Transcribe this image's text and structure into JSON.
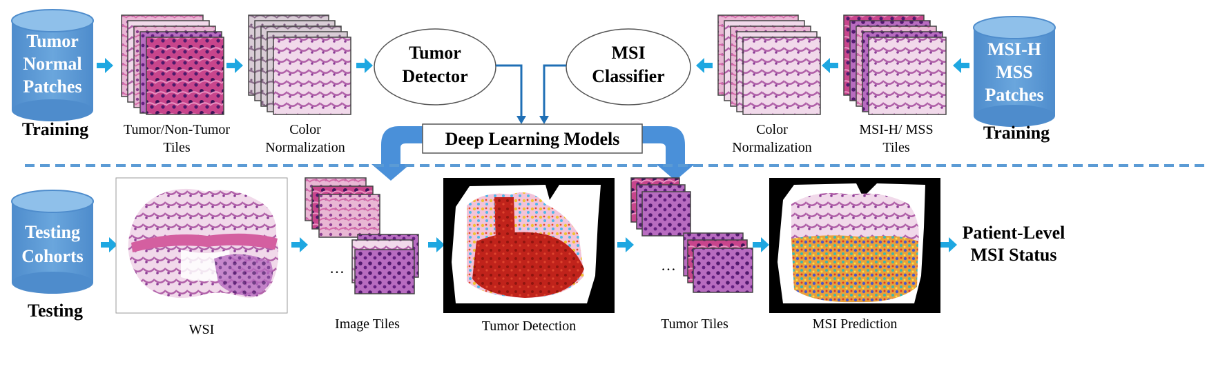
{
  "colors": {
    "cylinder": "#5b9bd5",
    "arrow": "#1ea7e1",
    "model_arrow": "#4a90d9",
    "dashed_line": "#5b9bd5",
    "tissue_pink": "#d98bb8",
    "tissue_purple": "#6a2a7a",
    "heat_red": "#c0231b"
  },
  "training_left": {
    "cylinder_lines": [
      "Tumor",
      "Normal",
      "Patches"
    ],
    "stage_label": "Training",
    "tiles_label_lines": [
      "Tumor/Non-Tumor",
      "Tiles"
    ],
    "normalization_label_lines": [
      "Color",
      "Normalization"
    ]
  },
  "training_right": {
    "cylinder_lines": [
      "MSI-H",
      "MSS",
      "Patches"
    ],
    "stage_label": "Training",
    "tiles_label_lines": [
      "MSI-H/ MSS",
      "Tiles"
    ],
    "normalization_label_lines": [
      "Color",
      "Normalization"
    ]
  },
  "models": {
    "tumor_detector_lines": [
      "Tumor",
      "Detector"
    ],
    "msi_classifier_lines": [
      "MSI",
      "Classifier"
    ],
    "deep_learning_label": "Deep Learning Models"
  },
  "testing": {
    "cylinder_lines": [
      "Testing",
      "Cohorts"
    ],
    "stage_label": "Testing",
    "wsi_label": "WSI",
    "image_tiles_label": "Image Tiles",
    "tumor_detection_label": "Tumor Detection",
    "tumor_tiles_label": "Tumor Tiles",
    "msi_prediction_label": "MSI Prediction",
    "result_lines": [
      "Patient-Level",
      "MSI Status"
    ],
    "ellipsis": "…"
  }
}
